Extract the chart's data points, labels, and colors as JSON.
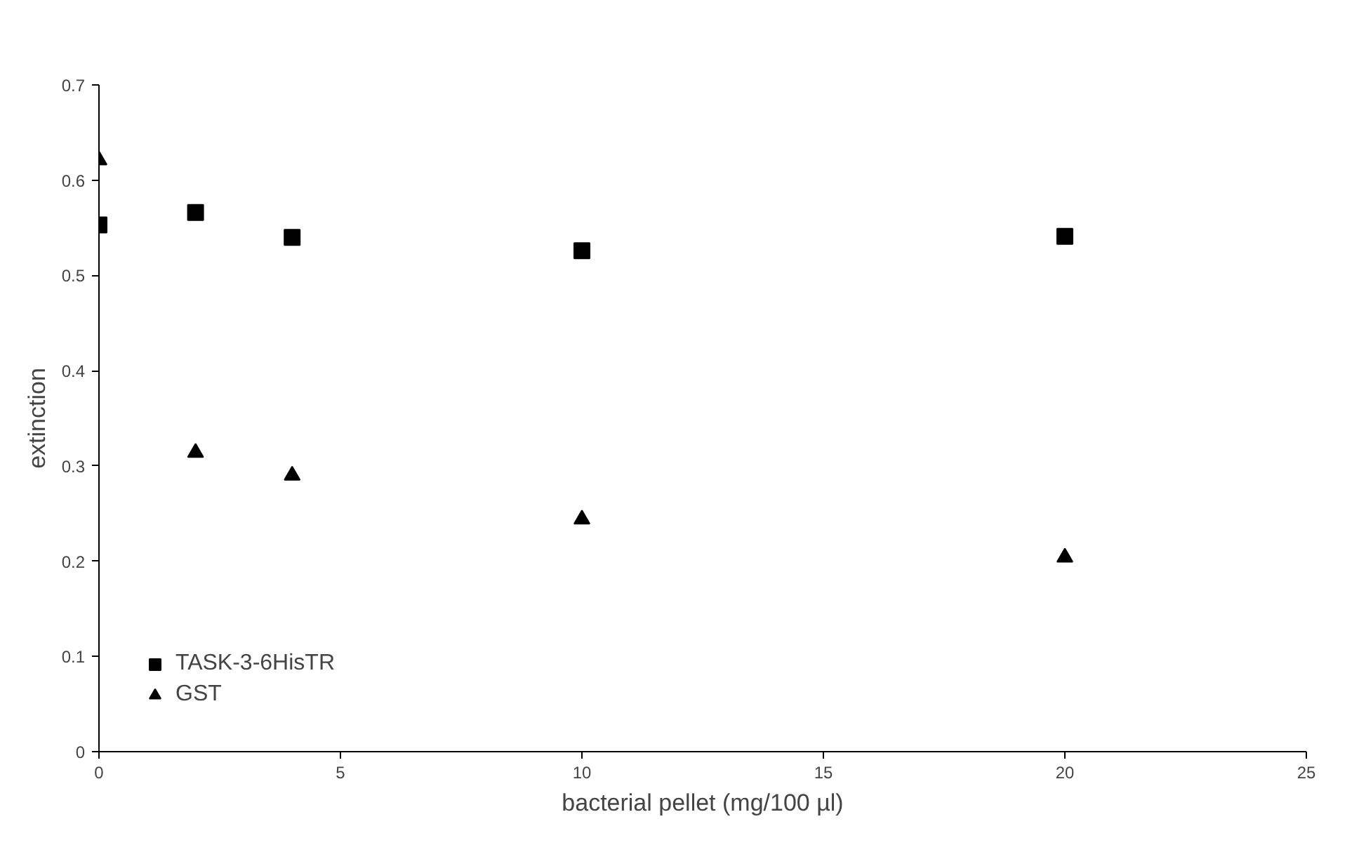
{
  "chart_data": {
    "type": "scatter",
    "xlabel": "bacterial pellet (mg/100 µl)",
    "ylabel": "extinction",
    "x": [
      0,
      2,
      4,
      10,
      20
    ],
    "series": [
      {
        "name": "TASK-3-6HisTR",
        "color": "#000000",
        "marker": "square",
        "values": [
          0.553,
          0.566,
          0.54,
          0.526,
          0.541
        ]
      },
      {
        "name": "GST",
        "color": "#000000",
        "marker": "triangle",
        "values": [
          0.621,
          0.314,
          0.29,
          0.244,
          0.204
        ]
      }
    ],
    "xlim": [
      0,
      25
    ],
    "xticks": [
      0,
      5,
      10,
      15,
      20,
      25
    ],
    "ylim": [
      0,
      0.7
    ],
    "yticks": [
      0,
      0.1,
      0.2,
      0.3,
      0.4,
      0.5,
      0.6,
      0.7
    ],
    "grid": false,
    "legend": "bottom left"
  }
}
